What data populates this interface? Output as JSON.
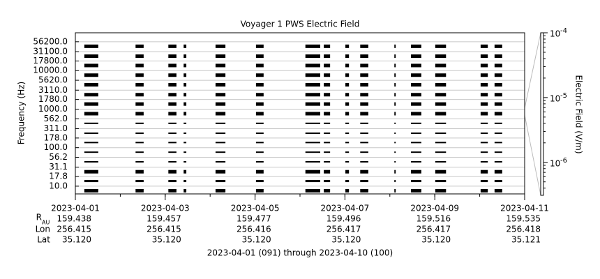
{
  "chart_data": {
    "type": "spectrogram",
    "title": "Voyager 1 PWS Electric Field",
    "y_label": "Frequency (Hz)",
    "log_y": true,
    "grid": true,
    "color": "#000000",
    "xlim": [
      0,
      10
    ],
    "xticks": [
      {
        "value": 0,
        "label": "2023-04-01"
      },
      {
        "value": 2,
        "label": "2023-04-03"
      },
      {
        "value": 4,
        "label": "2023-04-05"
      },
      {
        "value": 6,
        "label": "2023-04-07"
      },
      {
        "value": 8,
        "label": "2023-04-09"
      },
      {
        "value": 10,
        "label": "2023-04-11"
      }
    ],
    "ylim": [
      6.3,
      96000
    ],
    "yticks": [
      {
        "value": 56200,
        "label": "56200.0"
      },
      {
        "value": 31100,
        "label": "31100.0"
      },
      {
        "value": 17800,
        "label": "17800.0"
      },
      {
        "value": 10000,
        "label": "10000.0"
      },
      {
        "value": 5620,
        "label": "5620.0"
      },
      {
        "value": 3110,
        "label": "3110.0"
      },
      {
        "value": 1780,
        "label": "1780.0"
      },
      {
        "value": 1000,
        "label": "1000.0"
      },
      {
        "value": 562,
        "label": "562.0"
      },
      {
        "value": 311,
        "label": "311.0"
      },
      {
        "value": 178,
        "label": "178.0"
      },
      {
        "value": 100,
        "label": "100.0"
      },
      {
        "value": 56.2,
        "label": "56.2"
      },
      {
        "value": 31.1,
        "label": "31.1"
      },
      {
        "value": 17.8,
        "label": "17.8"
      },
      {
        "value": 10,
        "label": "10.0"
      }
    ],
    "segments": [
      [
        0.2,
        0.51
      ],
      [
        1.34,
        1.52
      ],
      [
        2.07,
        2.25
      ],
      [
        2.41,
        2.47
      ],
      [
        3.12,
        3.34
      ],
      [
        4.02,
        4.19
      ],
      [
        5.12,
        5.45
      ],
      [
        5.53,
        5.67
      ],
      [
        6.01,
        6.09
      ],
      [
        6.34,
        6.52
      ],
      [
        7.1,
        7.13
      ],
      [
        7.47,
        7.7
      ],
      [
        8.01,
        8.25
      ],
      [
        9.02,
        9.18
      ],
      [
        9.33,
        9.5
      ]
    ],
    "colorbar": {
      "label": "Electric Field (V/m)",
      "lim": [
        3.1e-07,
        0.0001
      ],
      "ticks": [
        {
          "value": 0.0001,
          "label": "10",
          "exponent": "-4"
        },
        {
          "value": 1e-05,
          "label": "10",
          "exponent": "-5"
        },
        {
          "value": 1e-06,
          "label": "10",
          "exponent": "-6"
        }
      ]
    },
    "ephemeris": [
      {
        "label": "R",
        "sub": "AU",
        "values": [
          "159.438",
          "159.457",
          "159.477",
          "159.496",
          "159.516",
          "159.535"
        ]
      },
      {
        "label": "Lon",
        "values": [
          "256.415",
          "256.415",
          "256.416",
          "256.417",
          "256.417",
          "256.418"
        ]
      },
      {
        "label": "Lat",
        "values": [
          "35.120",
          "35.120",
          "35.120",
          "35.120",
          "35.120",
          "35.121"
        ]
      }
    ],
    "footer": "2023-04-01 (091) through 2023-04-10 (100)"
  }
}
